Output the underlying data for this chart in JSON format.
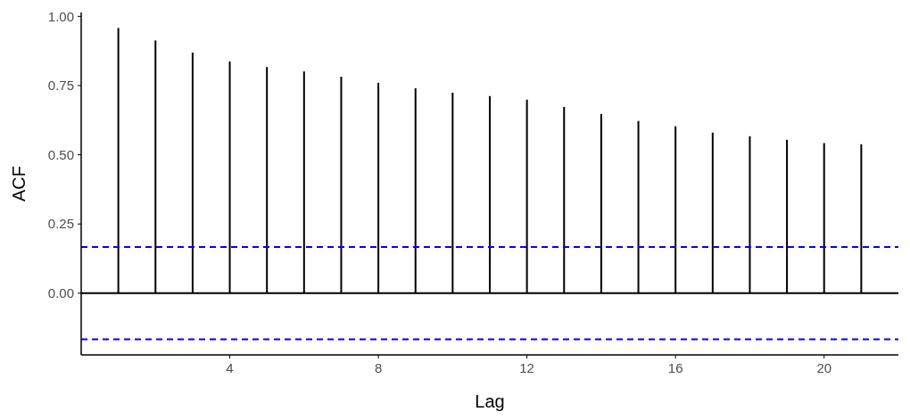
{
  "chart_data": {
    "type": "bar",
    "xlabel": "Lag",
    "ylabel": "ACF",
    "x": [
      1,
      2,
      3,
      4,
      5,
      6,
      7,
      8,
      9,
      10,
      11,
      12,
      13,
      14,
      15,
      16,
      17,
      18,
      19,
      20,
      21
    ],
    "values": [
      0.958,
      0.913,
      0.869,
      0.837,
      0.817,
      0.801,
      0.782,
      0.76,
      0.74,
      0.724,
      0.712,
      0.699,
      0.673,
      0.647,
      0.622,
      0.603,
      0.58,
      0.567,
      0.554,
      0.542,
      0.538
    ],
    "color": "#000000",
    "xlim": [
      0,
      22
    ],
    "xticks": [
      4,
      8,
      12,
      16,
      20
    ],
    "ylim": [
      -0.223,
      1.014
    ],
    "yticks": [
      {
        "value": 0,
        "label": "0.00"
      },
      {
        "value": 0.25,
        "label": "0.25"
      },
      {
        "value": 0.5,
        "label": "0.50"
      },
      {
        "value": 0.75,
        "label": "0.75"
      },
      {
        "value": 1,
        "label": "1.00"
      }
    ],
    "ref_lines": [
      {
        "axis": "y",
        "value": 0,
        "color": "#000000",
        "line_style": "solid"
      },
      {
        "axis": "y",
        "value": 0.167,
        "color": "#0000ff",
        "line_style": "dashed"
      },
      {
        "axis": "y",
        "value": -0.167,
        "color": "#0000ff",
        "line_style": "dashed"
      }
    ],
    "grid": false
  }
}
